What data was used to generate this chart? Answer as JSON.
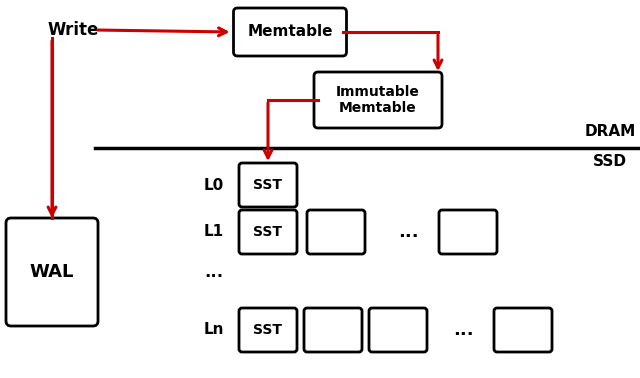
{
  "bg_color": "#ffffff",
  "arrow_color": "#cc0000",
  "box_color": "#000000",
  "box_fill": "#ffffff",
  "text_color": "#000000",
  "dram_label": "DRAM",
  "ssd_label": "SSD",
  "write_label": "Write",
  "wal_label": "WAL",
  "memtable_label": "Memtable",
  "immutable_label": "Immutable\nMemtable",
  "sst_label": "SST",
  "l0_label": "L0",
  "l1_label": "L1",
  "dots_label": "...",
  "dots2_label": "...",
  "ln_label": "Ln",
  "figw": 6.4,
  "figh": 3.78,
  "dpi": 100
}
